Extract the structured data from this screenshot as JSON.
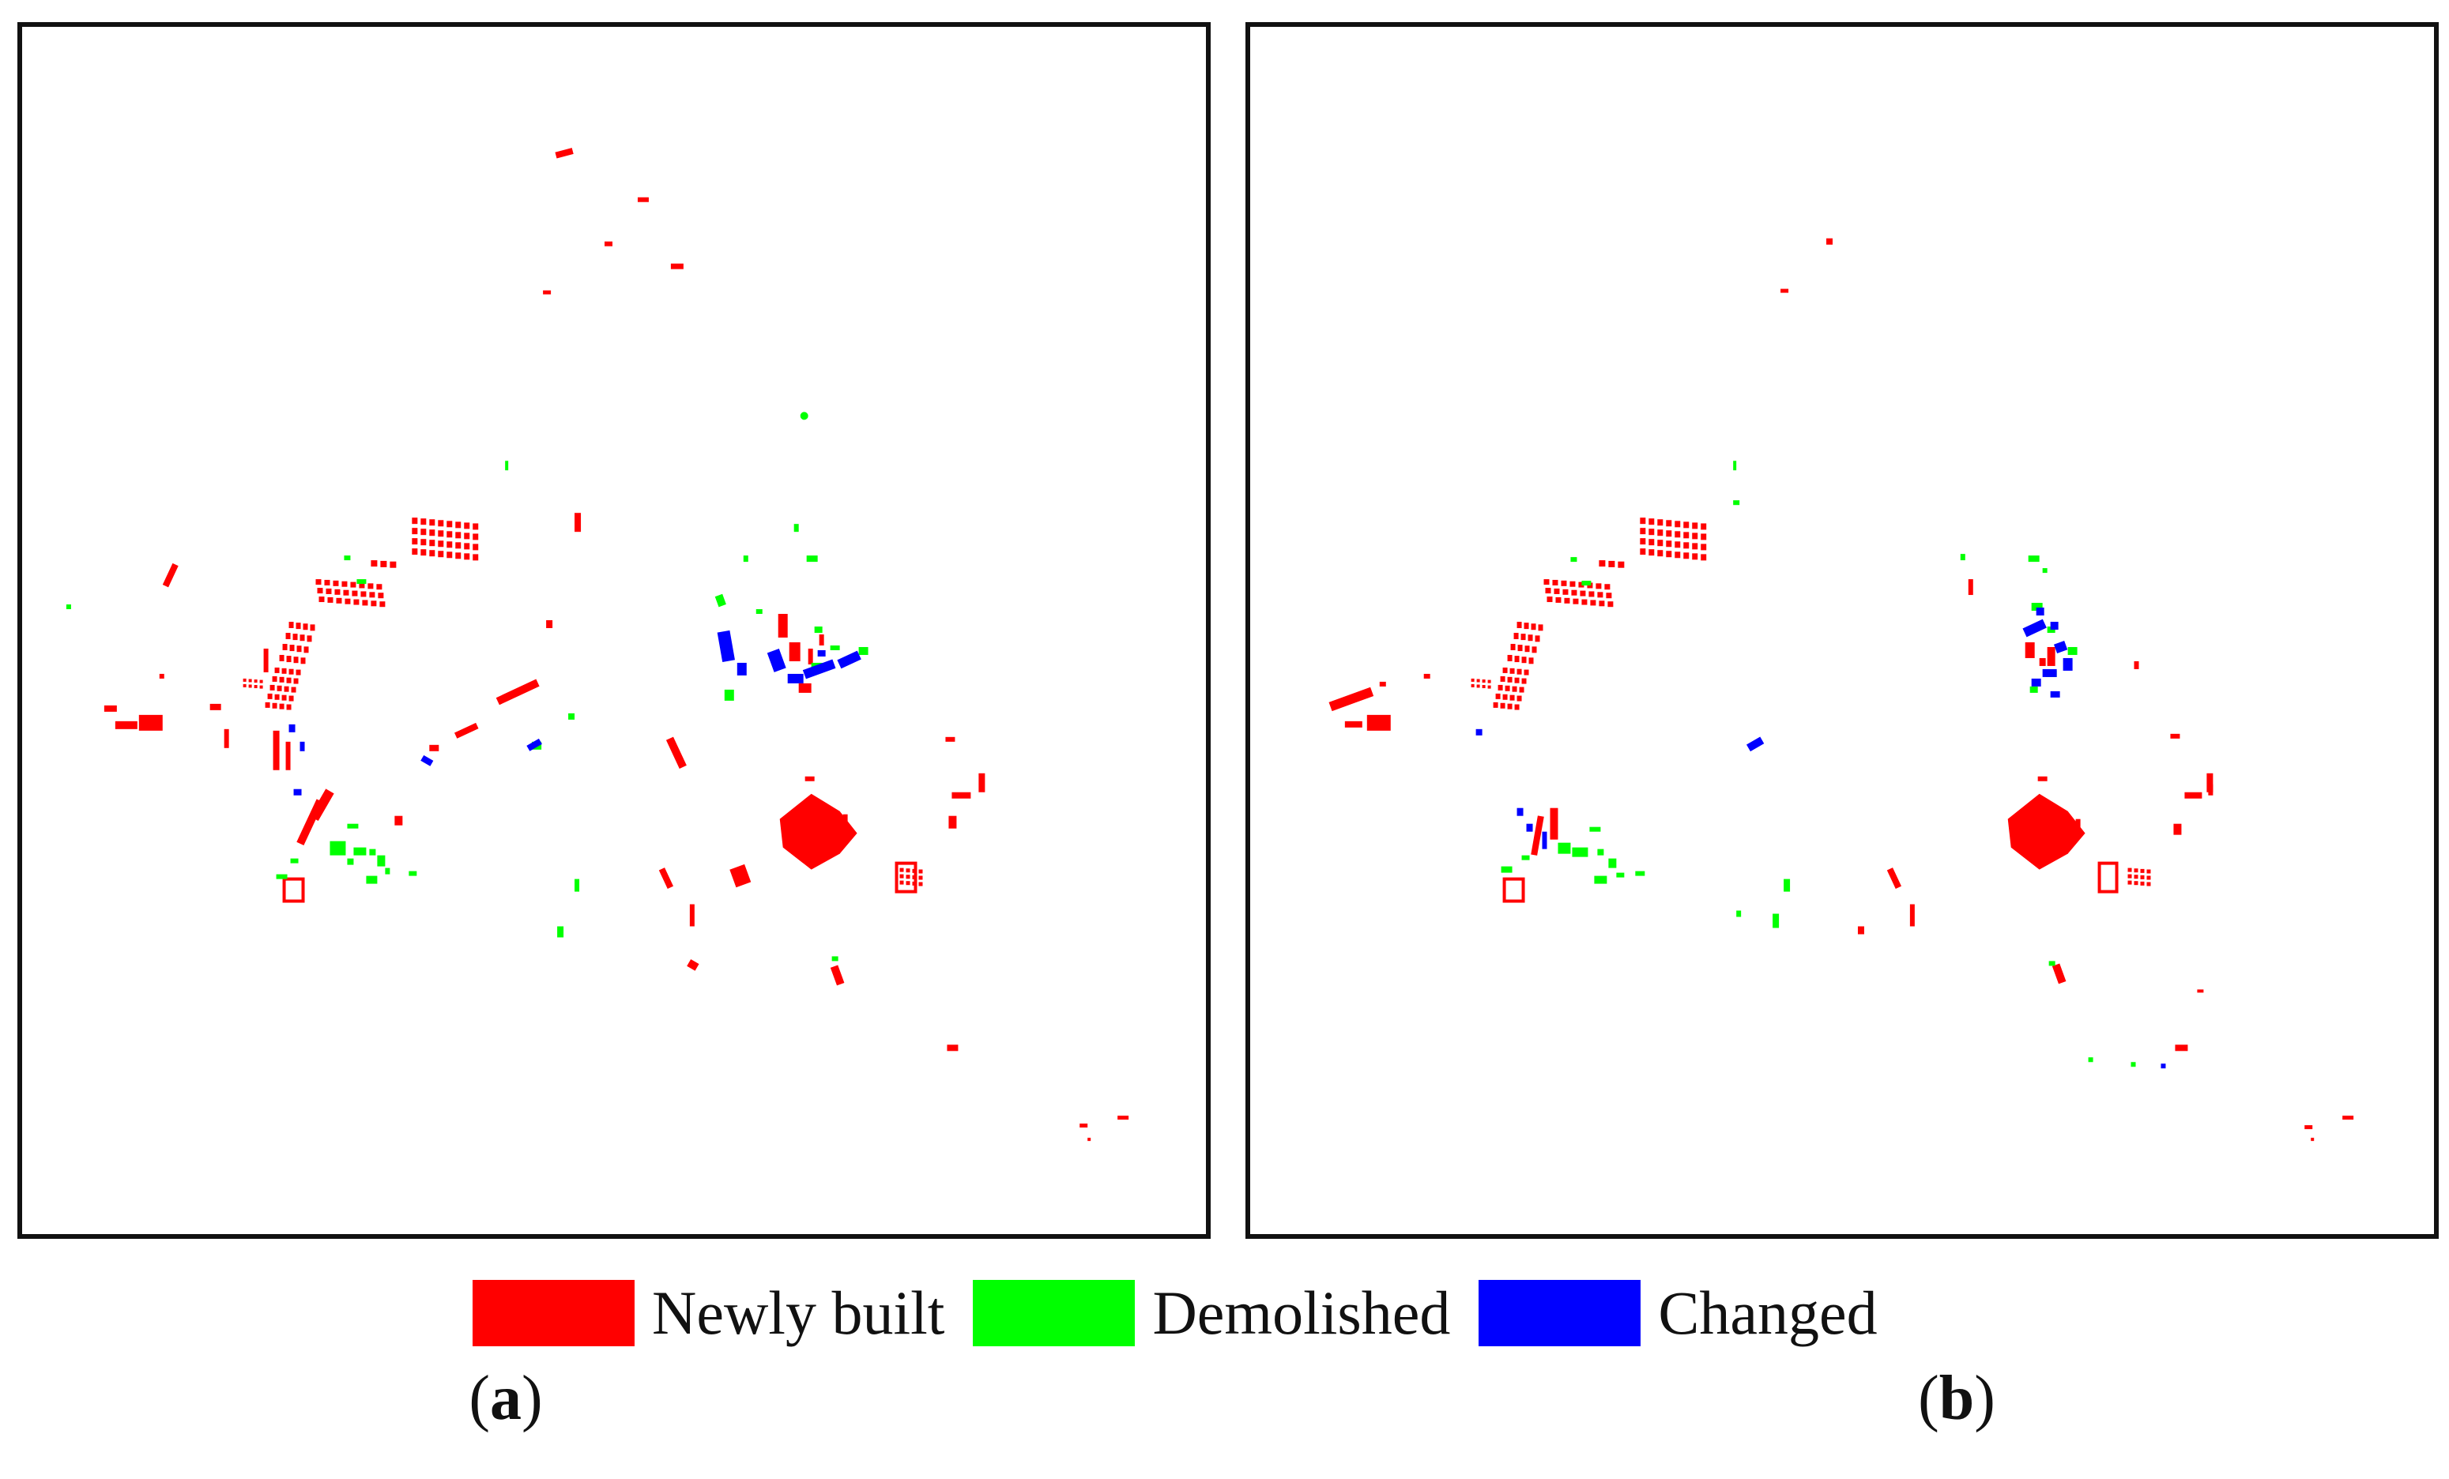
{
  "colors": {
    "newly_built": "#ff0000",
    "demolished": "#00ff00",
    "changed": "#0000ff",
    "frame": "#111111"
  },
  "legend": {
    "items": [
      {
        "key": "newly_built",
        "label": "Newly built"
      },
      {
        "key": "demolished",
        "label": "Demolished"
      },
      {
        "key": "changed",
        "label": "Changed"
      }
    ]
  },
  "panels": [
    {
      "id": "a",
      "caption_letter": "a"
    },
    {
      "id": "b",
      "caption_letter": "b"
    }
  ]
}
